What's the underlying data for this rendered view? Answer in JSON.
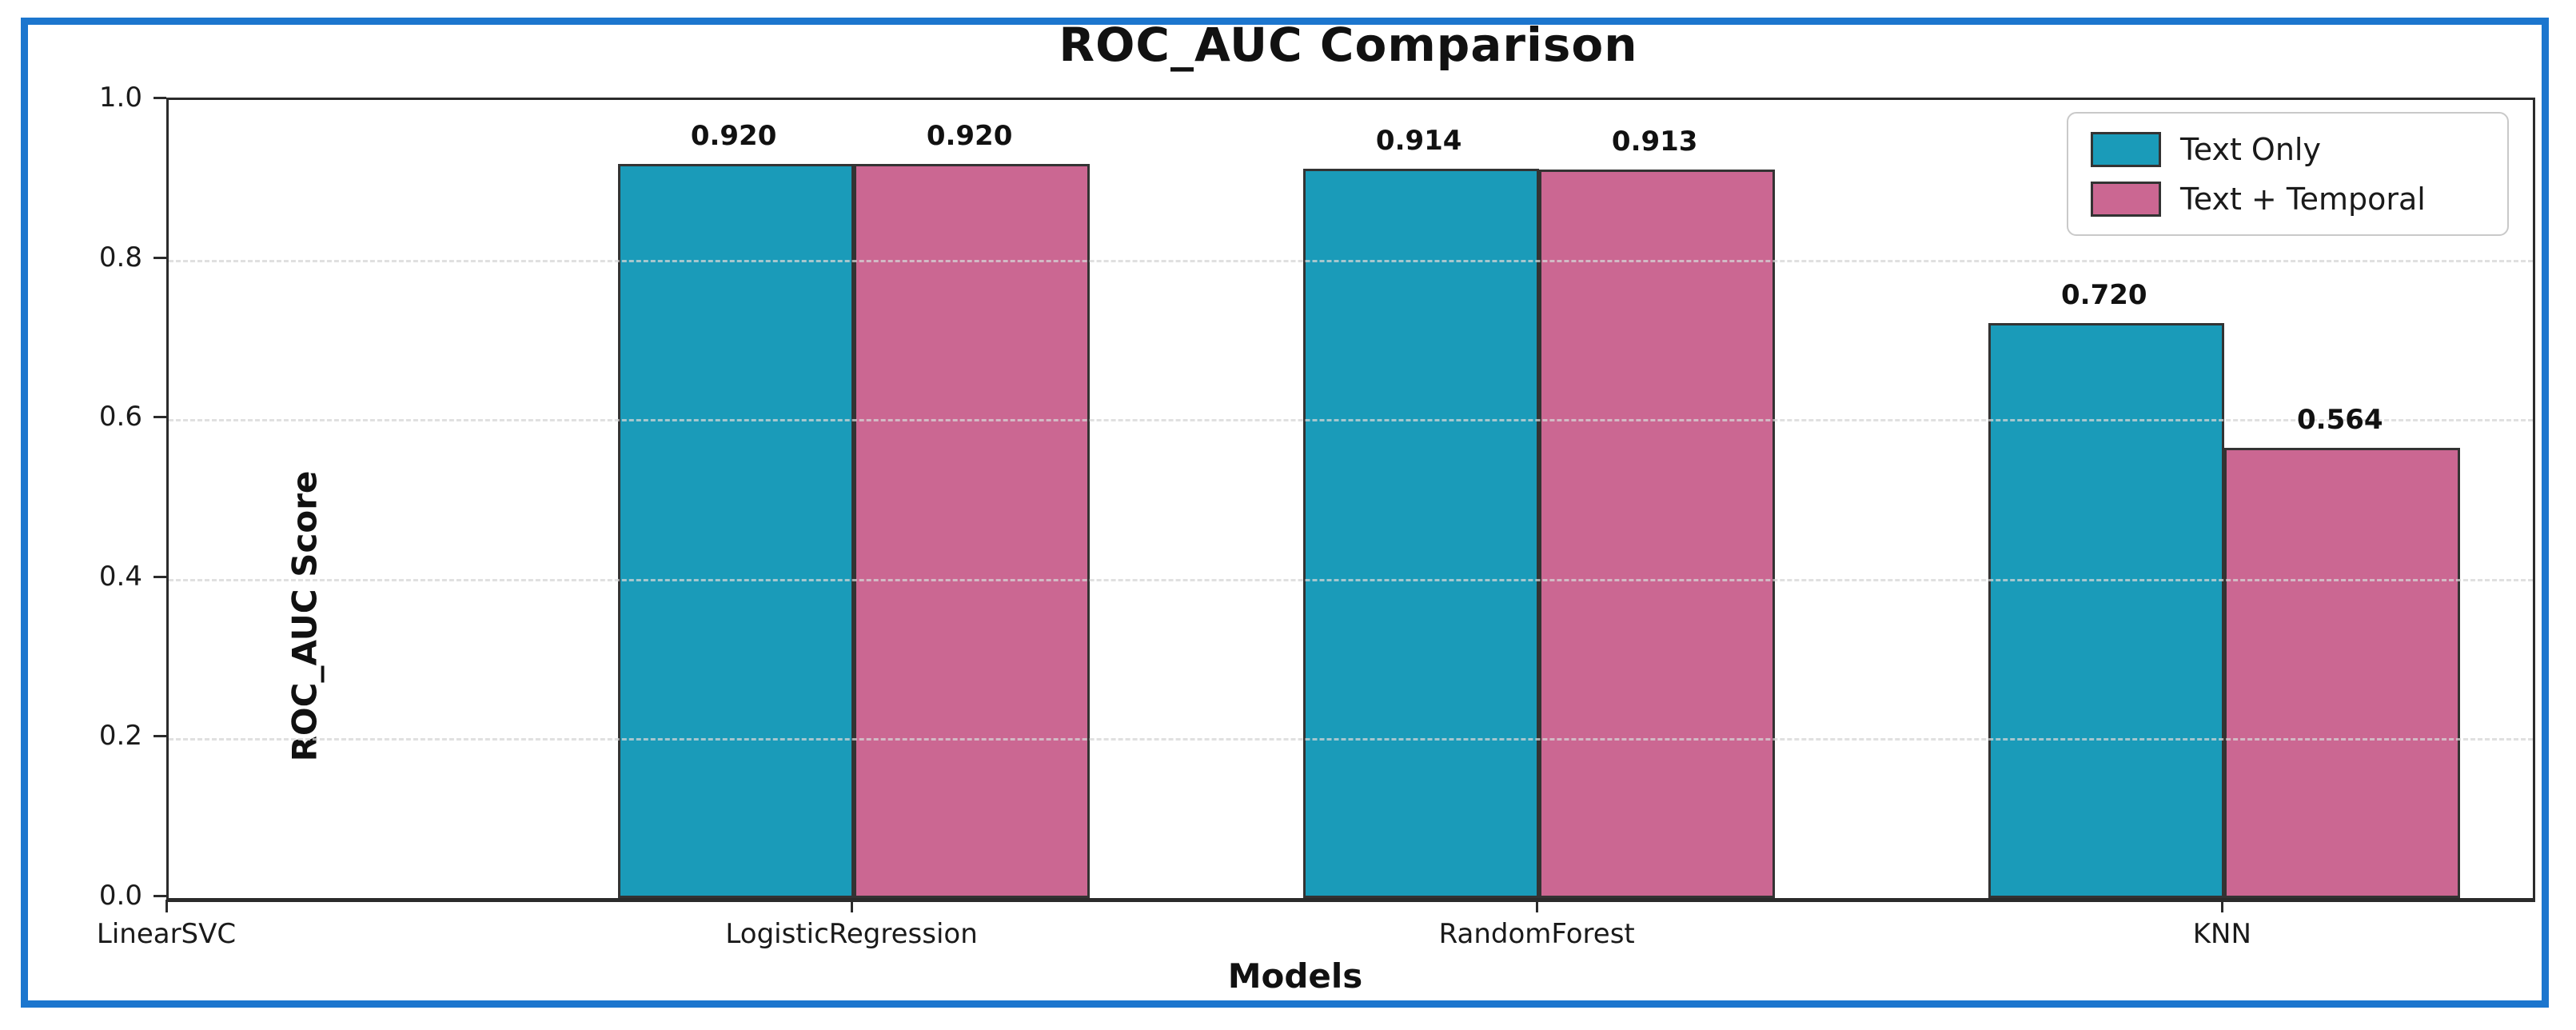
{
  "frame": {
    "border_color": "#1c76ce"
  },
  "chart_data": {
    "type": "bar",
    "title": "ROC_AUC Comparison",
    "xlabel": "Models",
    "ylabel": "ROC_AUC Score",
    "categories": [
      "LinearSVC",
      "LogisticRegression",
      "RandomForest",
      "KNN"
    ],
    "series": [
      {
        "name": "Text Only",
        "color": "#1a9bb9",
        "values": [
          null,
          0.92,
          0.914,
          0.72
        ]
      },
      {
        "name": "Text + Temporal",
        "color": "#cb6792",
        "values": [
          null,
          0.92,
          0.913,
          0.564
        ]
      }
    ],
    "bar_value_labels": [
      [
        null,
        "0.920",
        "0.914",
        "0.720"
      ],
      [
        null,
        "0.920",
        "0.913",
        "0.564"
      ]
    ],
    "ylim": [
      0.0,
      1.0
    ],
    "yticks": [
      "0.0",
      "0.2",
      "0.4",
      "0.6",
      "0.8",
      "1.0"
    ],
    "grid": "horizontal-dashed",
    "legend_position": "upper-right"
  }
}
